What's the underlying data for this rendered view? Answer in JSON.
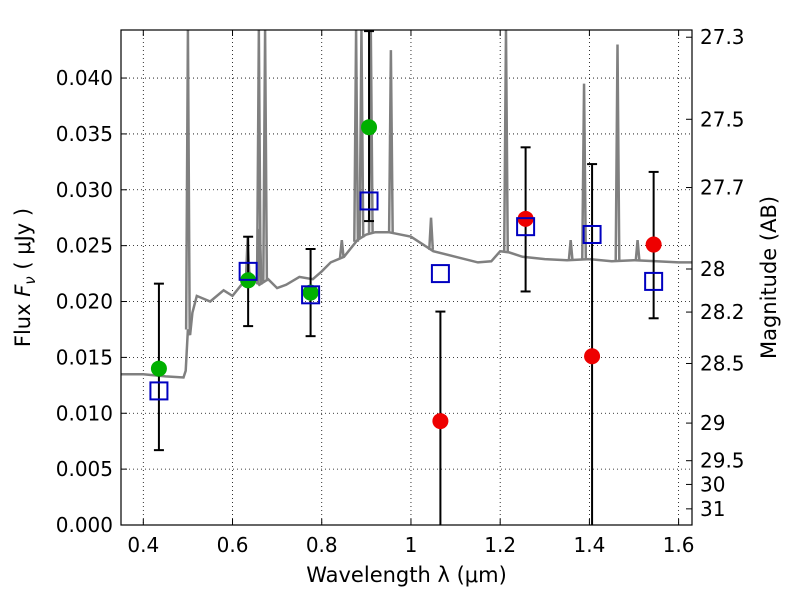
{
  "chart_data": {
    "type": "scatter",
    "xlabel": "Wavelength  λ (μm)",
    "ylabel": "Flux  F_ν  ( μJy )",
    "ylabel_parts": {
      "prefix": "Flux ",
      "var": "F",
      "sub": "ν",
      "unit": "  ( μJy )"
    },
    "y2label": "Magnitude (AB)",
    "xlim": [
      0.35,
      1.63
    ],
    "ylim": [
      0.0,
      0.0443
    ],
    "grid": true,
    "x_ticks": [
      {
        "value": 0.4,
        "label": "0.4"
      },
      {
        "value": 0.6,
        "label": "0.6"
      },
      {
        "value": 0.8,
        "label": "0.8"
      },
      {
        "value": 1.0,
        "label": "1"
      },
      {
        "value": 1.2,
        "label": "1.2"
      },
      {
        "value": 1.4,
        "label": "1.4"
      },
      {
        "value": 1.6,
        "label": "1.6"
      }
    ],
    "y_ticks": [
      {
        "value": 0.0,
        "label": "0.000"
      },
      {
        "value": 0.005,
        "label": "0.005"
      },
      {
        "value": 0.01,
        "label": "0.010"
      },
      {
        "value": 0.015,
        "label": "0.015"
      },
      {
        "value": 0.02,
        "label": "0.020"
      },
      {
        "value": 0.025,
        "label": "0.025"
      },
      {
        "value": 0.03,
        "label": "0.030"
      },
      {
        "value": 0.035,
        "label": "0.035"
      },
      {
        "value": 0.04,
        "label": "0.040"
      }
    ],
    "y2_ticks": [
      {
        "mag": 27.3,
        "label": "27.3"
      },
      {
        "mag": 27.5,
        "label": "27.5"
      },
      {
        "mag": 27.7,
        "label": "27.7"
      },
      {
        "mag": 28.0,
        "label": "28"
      },
      {
        "mag": 28.2,
        "label": "28.2"
      },
      {
        "mag": 28.5,
        "label": "28.5"
      },
      {
        "mag": 29.0,
        "label": "29"
      },
      {
        "mag": 29.5,
        "label": "29.5"
      },
      {
        "mag": 30.0,
        "label": "30"
      },
      {
        "mag": 31.0,
        "label": "31"
      }
    ],
    "model_spectrum": {
      "color": "#808080",
      "x": [
        0.35,
        0.4,
        0.45,
        0.49,
        0.495,
        0.5,
        0.505,
        0.51,
        0.52,
        0.55,
        0.58,
        0.6,
        0.62,
        0.635,
        0.64,
        0.66,
        0.68,
        0.7,
        0.72,
        0.75,
        0.78,
        0.8,
        0.82,
        0.85,
        0.88,
        0.9,
        0.92,
        0.95,
        1.0,
        1.05,
        1.1,
        1.15,
        1.18,
        1.2,
        1.22,
        1.25,
        1.3,
        1.35,
        1.4,
        1.45,
        1.5,
        1.55,
        1.6,
        1.63
      ],
      "y": [
        0.0135,
        0.0135,
        0.0133,
        0.0132,
        0.0138,
        0.0175,
        0.017,
        0.019,
        0.0205,
        0.02,
        0.021,
        0.0205,
        0.0215,
        0.022,
        0.0225,
        0.0215,
        0.022,
        0.0212,
        0.0215,
        0.0222,
        0.022,
        0.0227,
        0.0235,
        0.024,
        0.0255,
        0.026,
        0.0262,
        0.0262,
        0.0258,
        0.0245,
        0.024,
        0.0235,
        0.0236,
        0.0245,
        0.0244,
        0.024,
        0.0238,
        0.0237,
        0.0238,
        0.0236,
        0.0237,
        0.0236,
        0.0235,
        0.0235
      ]
    },
    "emission_lines": [
      {
        "x": 0.5,
        "peak": 0.0443
      },
      {
        "x": 0.659,
        "peak": 0.0443
      },
      {
        "x": 0.673,
        "peak": 0.0443
      },
      {
        "x": 0.877,
        "peak": 0.0443
      },
      {
        "x": 0.889,
        "peak": 0.0443
      },
      {
        "x": 0.91,
        "peak": 0.0443
      },
      {
        "x": 1.213,
        "peak": 0.0443
      },
      {
        "x": 0.955,
        "peak": 0.0425
      },
      {
        "x": 1.388,
        "peak": 0.0395
      },
      {
        "x": 1.463,
        "peak": 0.043
      },
      {
        "x": 0.634,
        "peak": 0.0258
      },
      {
        "x": 0.661,
        "peak": 0.0265
      },
      {
        "x": 0.845,
        "peak": 0.0255
      },
      {
        "x": 1.045,
        "peak": 0.0275
      },
      {
        "x": 1.358,
        "peak": 0.0255
      },
      {
        "x": 1.508,
        "peak": 0.0255
      }
    ],
    "series": [
      {
        "color": "#00b000",
        "marker": "circle",
        "points": [
          {
            "x": 0.435,
            "y": 0.014
          },
          {
            "x": 0.635,
            "y": 0.0219
          },
          {
            "x": 0.775,
            "y": 0.0208
          },
          {
            "x": 0.906,
            "y": 0.0356
          }
        ]
      },
      {
        "color": "#ee0000",
        "marker": "circle",
        "points": [
          {
            "x": 1.066,
            "y": 0.0093
          },
          {
            "x": 1.257,
            "y": 0.0274
          },
          {
            "x": 1.406,
            "y": 0.0151
          },
          {
            "x": 1.544,
            "y": 0.0251
          }
        ]
      },
      {
        "color": "#0000c0",
        "marker": "open-square",
        "points": [
          {
            "x": 0.435,
            "y": 0.012
          },
          {
            "x": 0.635,
            "y": 0.0227
          },
          {
            "x": 0.775,
            "y": 0.0206
          },
          {
            "x": 0.906,
            "y": 0.029
          },
          {
            "x": 1.066,
            "y": 0.0225
          },
          {
            "x": 1.257,
            "y": 0.0267
          },
          {
            "x": 1.406,
            "y": 0.026
          },
          {
            "x": 1.544,
            "y": 0.0218
          }
        ]
      }
    ],
    "error_bars": [
      {
        "x": 0.435,
        "low": 0.0067,
        "high": 0.0216
      },
      {
        "x": 0.635,
        "low": 0.0178,
        "high": 0.0258
      },
      {
        "x": 0.775,
        "low": 0.0169,
        "high": 0.0247
      },
      {
        "x": 0.906,
        "low": 0.0272,
        "high": 0.0442
      },
      {
        "x": 1.066,
        "low": 0.0,
        "high": 0.0191
      },
      {
        "x": 1.257,
        "low": 0.0209,
        "high": 0.0338
      },
      {
        "x": 1.406,
        "low": 0.0,
        "high": 0.0323
      },
      {
        "x": 1.544,
        "low": 0.0185,
        "high": 0.0316
      }
    ]
  }
}
